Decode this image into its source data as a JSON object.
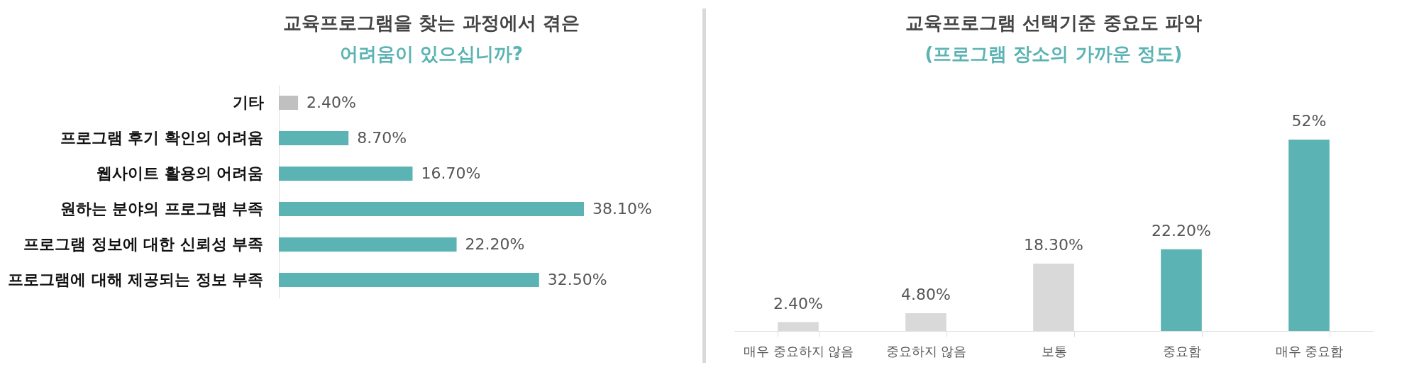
{
  "chart_data": [
    {
      "type": "bar",
      "title": "교육프로그램을 찾는 과정에서 겪은",
      "subtitle": "어려움이 있으십니까?",
      "orientation": "horizontal",
      "categories": [
        "기타",
        "프로그램 후기 확인의 어려움",
        "웹사이트 활용의 어려움",
        "원하는 분야의 프로그램 부족",
        "프로그램 정보에 대한 신뢰성 부족",
        "프로그램에 대해 제공되는 정보 부족"
      ],
      "values": [
        2.4,
        8.7,
        16.7,
        38.1,
        22.2,
        32.5
      ],
      "value_labels": [
        "2.40%",
        "8.70%",
        "16.70%",
        "38.10%",
        "22.20%",
        "32.50%"
      ],
      "colors": [
        "#c0c0c0",
        "#5bb3b3",
        "#5bb3b3",
        "#5bb3b3",
        "#5bb3b3",
        "#5bb3b3"
      ]
    },
    {
      "type": "bar",
      "title": "교육프로그램 선택기준 중요도 파악",
      "subtitle": "(프로그램 장소의 가까운 정도)",
      "categories": [
        "매우 중요하지 않음",
        "중요하지 않음",
        "보통",
        "중요함",
        "매우 중요함"
      ],
      "values": [
        2.4,
        4.8,
        18.3,
        22.2,
        52
      ],
      "value_labels": [
        "2.40%",
        "4.80%",
        "18.30%",
        "22.20%",
        "52%"
      ],
      "colors": [
        "#d9d9d9",
        "#d9d9d9",
        "#d9d9d9",
        "#5bb3b3",
        "#5bb3b3"
      ]
    }
  ]
}
